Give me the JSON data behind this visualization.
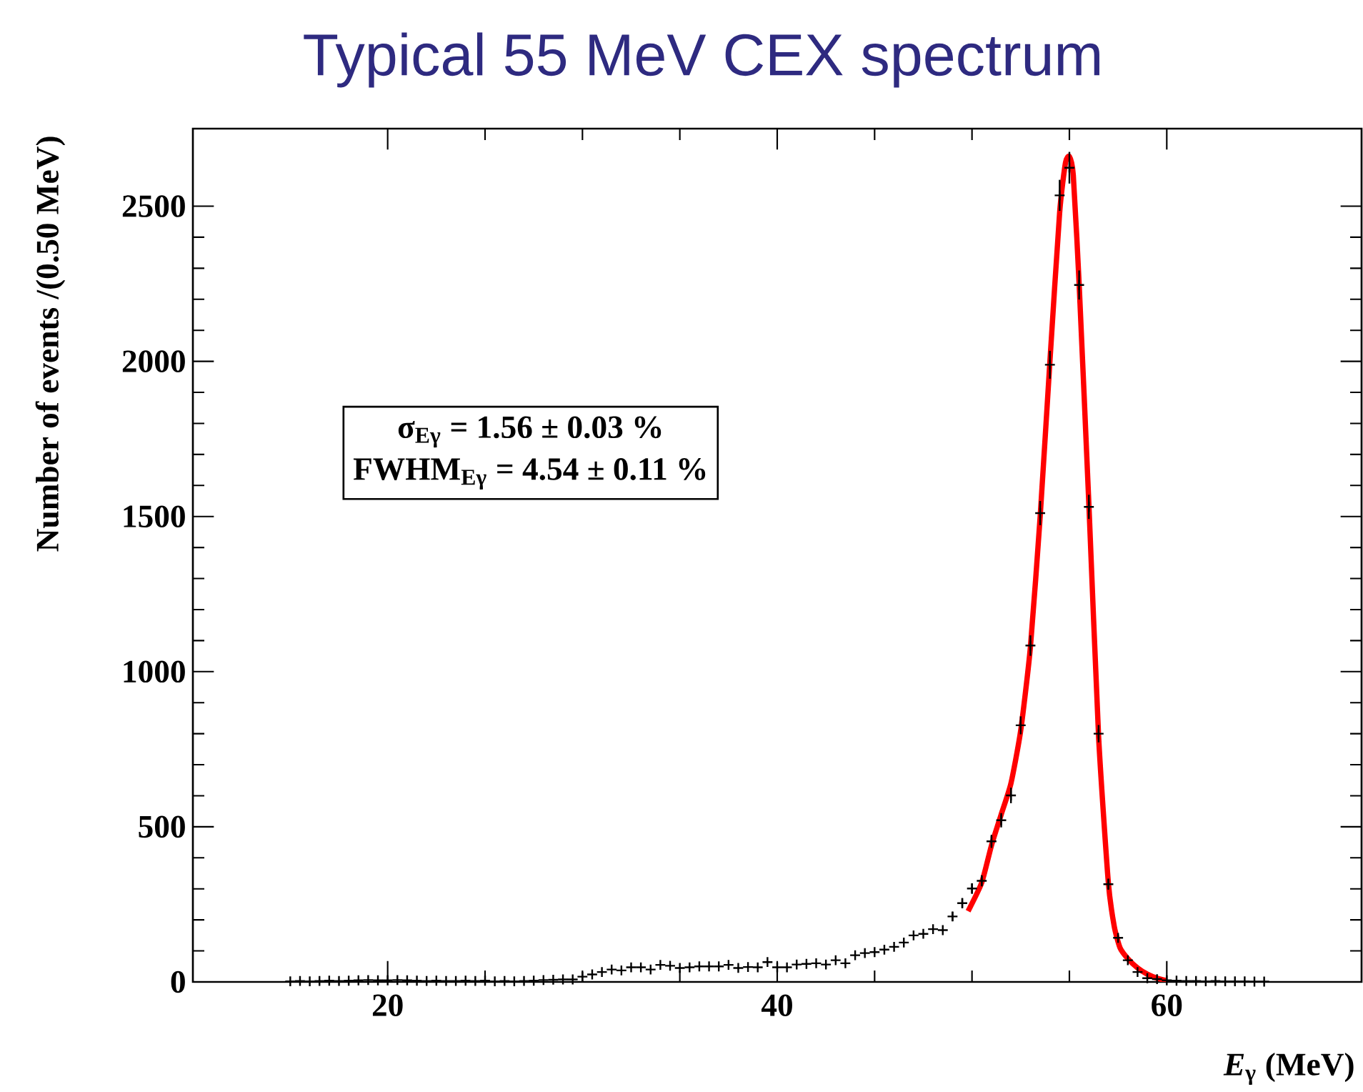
{
  "chart_data": {
    "type": "scatter",
    "title": "Typical 55 MeV CEX spectrum",
    "xlabel": "*E*$_{γ}$ (MeV)",
    "ylabel": "Number of events /(0.50 MeV)",
    "xlim": [
      10,
      70
    ],
    "ylim": [
      0,
      2750
    ],
    "xticks": [
      20,
      40,
      60
    ],
    "yticks": [
      0,
      500,
      1000,
      1500,
      2000,
      2500
    ],
    "annotations": [
      "σ$_{Eγ}$ = 1.56 ± 0.03 %",
      "FWHM$_{Eγ}$ = 4.54 ± 0.11 %"
    ],
    "series": [
      {
        "color": "#000000",
        "marker": "cross",
        "x": [
          15,
          15.5,
          16,
          16.5,
          17,
          17.5,
          18,
          18.5,
          19,
          19.5,
          20,
          20.5,
          21,
          21.5,
          22,
          22.5,
          23,
          23.5,
          24,
          24.5,
          25,
          25.5,
          26,
          26.5,
          27,
          27.5,
          28,
          28.5,
          29,
          29.5,
          30,
          30.5,
          31,
          31.5,
          32,
          32.5,
          33,
          33.5,
          34,
          34.5,
          35,
          35.5,
          36,
          36.5,
          37,
          37.5,
          38,
          38.5,
          39,
          39.5,
          40,
          40.5,
          41,
          41.5,
          42,
          42.5,
          43,
          43.5,
          44,
          44.5,
          45,
          45.5,
          46,
          46.5,
          47,
          47.5,
          48,
          48.5,
          49,
          49.5,
          50,
          50.5,
          51,
          51.5,
          52,
          52.5,
          53,
          53.5,
          54,
          54.5,
          55,
          55.5,
          56,
          56.5,
          57,
          57.5,
          58,
          58.5,
          59,
          59.5,
          60,
          60.5,
          61,
          61.5,
          62,
          62.5,
          63,
          63.5,
          64,
          64.5,
          65
        ],
        "values": [
          2,
          3,
          2,
          3,
          4,
          3,
          4,
          5,
          6,
          5,
          5,
          6,
          5,
          4,
          3,
          4,
          3,
          3,
          4,
          3,
          4,
          2,
          3,
          2,
          3,
          4,
          6,
          7,
          8,
          8,
          17,
          24,
          32,
          40,
          37,
          47,
          47,
          40,
          55,
          52,
          45,
          47,
          50,
          50,
          50,
          55,
          45,
          48,
          47,
          64,
          47,
          47,
          56,
          58,
          60,
          56,
          70,
          60,
          86,
          93,
          96,
          104,
          113,
          127,
          150,
          155,
          170,
          167,
          211,
          254,
          301,
          326,
          453,
          521,
          601,
          827,
          1084,
          1511,
          1989,
          2535,
          2624,
          2246,
          1531,
          800,
          315,
          142,
          70,
          32,
          12,
          9,
          5,
          4,
          3,
          3,
          2,
          3,
          2,
          2,
          2,
          1,
          1
        ],
        "errors": [
          null,
          null,
          null,
          null,
          null,
          null,
          null,
          null,
          null,
          null,
          null,
          null,
          null,
          null,
          null,
          null,
          null,
          null,
          null,
          null,
          null,
          null,
          null,
          null,
          null,
          null,
          null,
          null,
          null,
          null,
          null,
          null,
          null,
          null,
          null,
          null,
          null,
          null,
          null,
          null,
          null,
          null,
          null,
          null,
          null,
          null,
          null,
          null,
          null,
          null,
          null,
          null,
          null,
          null,
          null,
          null,
          null,
          null,
          null,
          null,
          null,
          null,
          null,
          null,
          null,
          null,
          null,
          null,
          15,
          16,
          17,
          18,
          21,
          23,
          25,
          29,
          33,
          39,
          45,
          50,
          51,
          47,
          39,
          28,
          18,
          null,
          null,
          null,
          null,
          null,
          null,
          null,
          null,
          null,
          null,
          null,
          null,
          null,
          null,
          null,
          null
        ]
      },
      {
        "type": "line",
        "color": "#ff0000",
        "x": [
          49.8,
          50.5,
          51,
          51.5,
          52,
          52.5,
          53,
          53.5,
          54,
          54.5,
          54.8,
          55,
          55.2,
          55.5,
          56,
          56.5,
          57,
          57.3,
          57.6,
          58,
          58.5,
          59,
          59.5,
          60
        ],
        "values": [
          228,
          320,
          440,
          540,
          640,
          810,
          1080,
          1500,
          2000,
          2480,
          2640,
          2660,
          2600,
          2250,
          1540,
          790,
          320,
          180,
          110,
          75,
          45,
          25,
          12,
          4
        ]
      }
    ]
  }
}
